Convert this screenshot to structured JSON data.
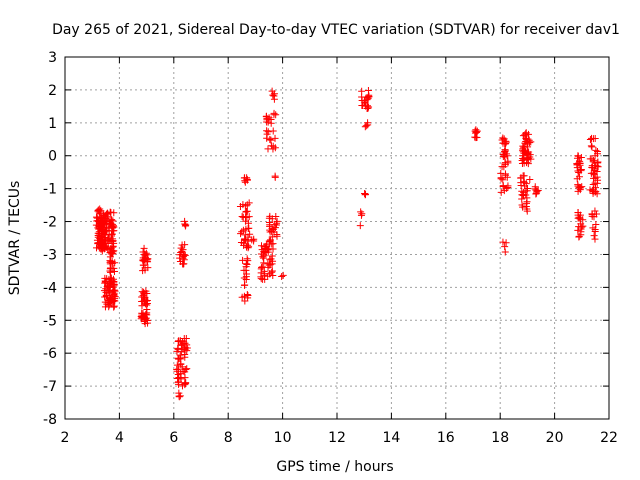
{
  "chart_data": {
    "type": "scatter",
    "title": "Day 265 of 2021, Sidereal Day-to-day VTEC variation (SDTVAR) for receiver dav1",
    "xlabel": "GPS time / hours",
    "ylabel": "SDTVAR / TECUs",
    "xlim": [
      2,
      22
    ],
    "ylim": [
      -8,
      3
    ],
    "xticks": [
      2,
      4,
      6,
      8,
      10,
      12,
      14,
      16,
      18,
      20,
      22
    ],
    "yticks": [
      -8,
      -7,
      -6,
      -5,
      -4,
      -3,
      -2,
      -1,
      0,
      1,
      2,
      3
    ],
    "grid": true,
    "marker": "+",
    "marker_color": "#ff0000",
    "series": [
      {
        "name": "SDTVAR",
        "clusters": [
          {
            "x": [
              3.15,
              3.45
            ],
            "y": [
              -2.8,
              -1.6
            ],
            "n": 70
          },
          {
            "x": [
              3.3,
              3.8
            ],
            "y": [
              -2.9,
              -1.7
            ],
            "n": 90
          },
          {
            "x": [
              3.45,
              3.85
            ],
            "y": [
              -4.6,
              -3.7
            ],
            "n": 70
          },
          {
            "x": [
              3.65,
              3.85
            ],
            "y": [
              -3.6,
              -2.8
            ],
            "n": 25
          },
          {
            "x": [
              4.85,
              5.05
            ],
            "y": [
              -3.5,
              -2.8
            ],
            "n": 25
          },
          {
            "x": [
              4.8,
              5.05
            ],
            "y": [
              -5.2,
              -4.1
            ],
            "n": 45
          },
          {
            "x": [
              6.2,
              6.45
            ],
            "y": [
              -3.3,
              -2.7
            ],
            "n": 18
          },
          {
            "x": [
              6.35,
              6.45
            ],
            "y": [
              -2.2,
              -1.9
            ],
            "n": 4
          },
          {
            "x": [
              6.1,
              6.5
            ],
            "y": [
              -7.45,
              -5.55
            ],
            "n": 60
          },
          {
            "x": [
              8.45,
              8.8
            ],
            "y": [
              -2.8,
              -1.4
            ],
            "n": 35
          },
          {
            "x": [
              8.55,
              8.75
            ],
            "y": [
              -0.85,
              -0.65
            ],
            "n": 8
          },
          {
            "x": [
              8.5,
              8.75
            ],
            "y": [
              -4.5,
              -3.1
            ],
            "n": 20
          },
          {
            "x": [
              8.85,
              8.95
            ],
            "y": [
              -2.6,
              -2.5
            ],
            "n": 3
          },
          {
            "x": [
              9.2,
              9.65
            ],
            "y": [
              -3.8,
              -2.6
            ],
            "n": 50
          },
          {
            "x": [
              9.5,
              9.8
            ],
            "y": [
              -2.7,
              -1.8
            ],
            "n": 25
          },
          {
            "x": [
              9.4,
              9.75
            ],
            "y": [
              0.2,
              1.3
            ],
            "n": 25
          },
          {
            "x": [
              9.6,
              9.7
            ],
            "y": [
              1.5,
              2.0
            ],
            "n": 5
          },
          {
            "x": [
              9.65,
              9.75
            ],
            "y": [
              -0.8,
              -0.6
            ],
            "n": 2
          },
          {
            "x": [
              9.95,
              10.05
            ],
            "y": [
              -3.7,
              -3.55
            ],
            "n": 2
          },
          {
            "x": [
              12.9,
              13.2
            ],
            "y": [
              1.4,
              2.0
            ],
            "n": 22
          },
          {
            "x": [
              13.0,
              13.15
            ],
            "y": [
              0.5,
              1.2
            ],
            "n": 4
          },
          {
            "x": [
              12.95,
              13.1
            ],
            "y": [
              -1.25,
              -1.1
            ],
            "n": 4
          },
          {
            "x": [
              12.85,
              12.95
            ],
            "y": [
              -2.3,
              -1.6
            ],
            "n": 4
          },
          {
            "x": [
              17.05,
              17.2
            ],
            "y": [
              0.55,
              0.8
            ],
            "n": 10
          },
          {
            "x": [
              18.0,
              18.3
            ],
            "y": [
              -1.2,
              0.6
            ],
            "n": 40
          },
          {
            "x": [
              18.1,
              18.25
            ],
            "y": [
              -3.0,
              -2.5
            ],
            "n": 4
          },
          {
            "x": [
              18.8,
              19.15
            ],
            "y": [
              -0.25,
              0.7
            ],
            "n": 45
          },
          {
            "x": [
              18.75,
              19.1
            ],
            "y": [
              -1.7,
              -0.6
            ],
            "n": 30
          },
          {
            "x": [
              19.25,
              19.4
            ],
            "y": [
              -1.3,
              -0.9
            ],
            "n": 8
          },
          {
            "x": [
              20.8,
              21.0
            ],
            "y": [
              -1.2,
              0.0
            ],
            "n": 28
          },
          {
            "x": [
              20.85,
              21.05
            ],
            "y": [
              -2.5,
              -1.7
            ],
            "n": 18
          },
          {
            "x": [
              21.3,
              21.6
            ],
            "y": [
              -1.2,
              0.55
            ],
            "n": 45
          },
          {
            "x": [
              21.35,
              21.55
            ],
            "y": [
              -2.6,
              -1.4
            ],
            "n": 12
          }
        ]
      }
    ]
  }
}
